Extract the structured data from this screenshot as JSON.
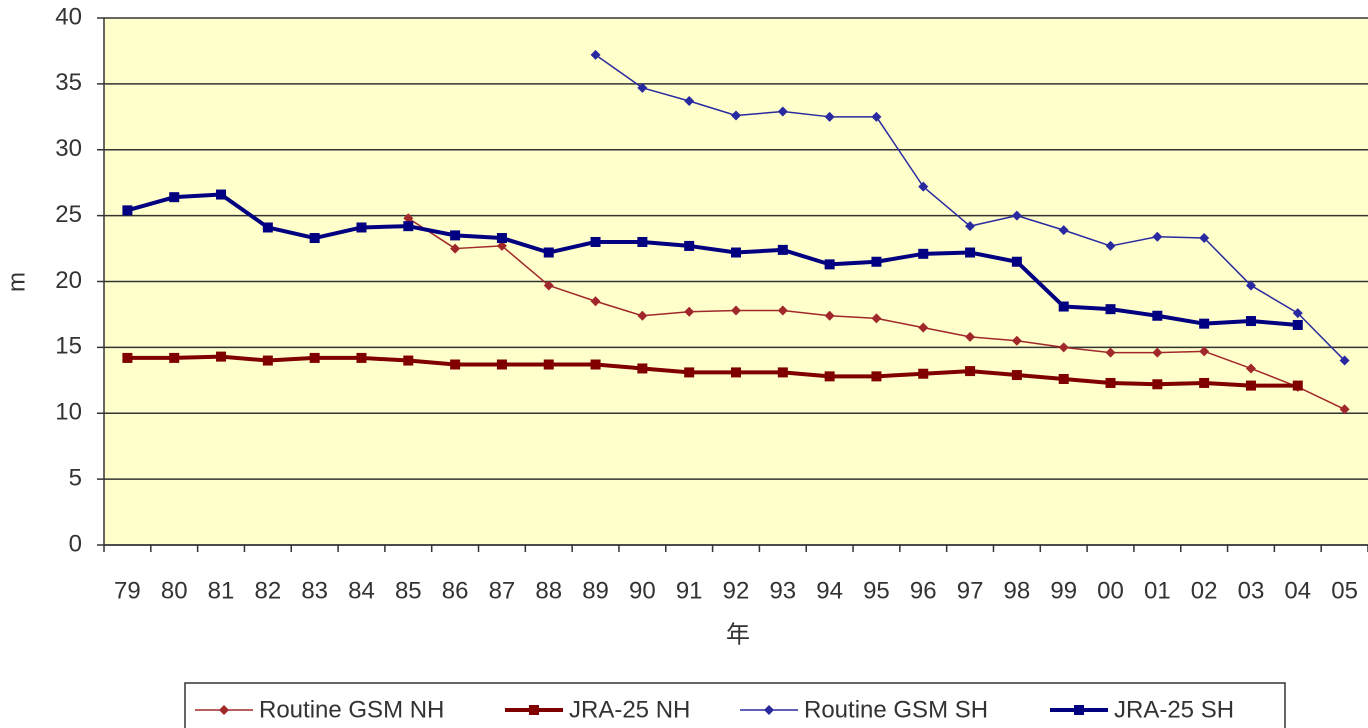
{
  "chart_data": {
    "type": "line",
    "xlabel": "年",
    "ylabel": "m",
    "categories": [
      "79",
      "80",
      "81",
      "82",
      "83",
      "84",
      "85",
      "86",
      "87",
      "88",
      "89",
      "90",
      "91",
      "92",
      "93",
      "94",
      "95",
      "96",
      "97",
      "98",
      "99",
      "00",
      "01",
      "02",
      "03",
      "04",
      "05"
    ],
    "ylim": [
      0,
      40
    ],
    "yticks": [
      0,
      5,
      10,
      15,
      20,
      25,
      30,
      35,
      40
    ],
    "grid": true,
    "legend": "bottom",
    "background": "#ffffcc",
    "series": [
      {
        "name": "Routine GSM NH",
        "color": "#a0282a",
        "width": 1.5,
        "marker": "diamond",
        "values": [
          null,
          null,
          null,
          null,
          null,
          null,
          24.8,
          22.5,
          22.7,
          19.7,
          18.5,
          17.4,
          17.7,
          17.8,
          17.8,
          17.4,
          17.2,
          16.5,
          15.8,
          15.5,
          15.0,
          14.6,
          14.6,
          14.7,
          13.4,
          12.0,
          10.3
        ]
      },
      {
        "name": "JRA-25 NH",
        "color": "#800000",
        "width": 4,
        "marker": "square",
        "values": [
          14.2,
          14.2,
          14.3,
          14.0,
          14.2,
          14.2,
          14.0,
          13.7,
          13.7,
          13.7,
          13.7,
          13.4,
          13.1,
          13.1,
          13.1,
          12.8,
          12.8,
          13.0,
          13.2,
          12.9,
          12.6,
          12.3,
          12.2,
          12.3,
          12.1,
          12.1,
          null
        ]
      },
      {
        "name": "Routine GSM SH",
        "color": "#2a2aa0",
        "width": 1.5,
        "marker": "diamond",
        "values": [
          null,
          null,
          null,
          null,
          null,
          null,
          null,
          null,
          null,
          null,
          37.2,
          34.7,
          33.7,
          32.6,
          32.9,
          32.5,
          32.5,
          27.2,
          24.2,
          25.0,
          23.9,
          22.7,
          23.4,
          23.3,
          19.7,
          17.6,
          14.0
        ]
      },
      {
        "name": "JRA-25 SH",
        "color": "#000080",
        "width": 4,
        "marker": "square",
        "values": [
          25.4,
          26.4,
          26.6,
          24.1,
          23.3,
          24.1,
          24.2,
          23.5,
          23.3,
          22.2,
          23.0,
          23.0,
          22.7,
          22.2,
          22.4,
          21.3,
          21.5,
          22.1,
          22.2,
          21.5,
          18.1,
          17.9,
          17.4,
          16.8,
          17.0,
          16.7,
          null
        ]
      }
    ]
  }
}
